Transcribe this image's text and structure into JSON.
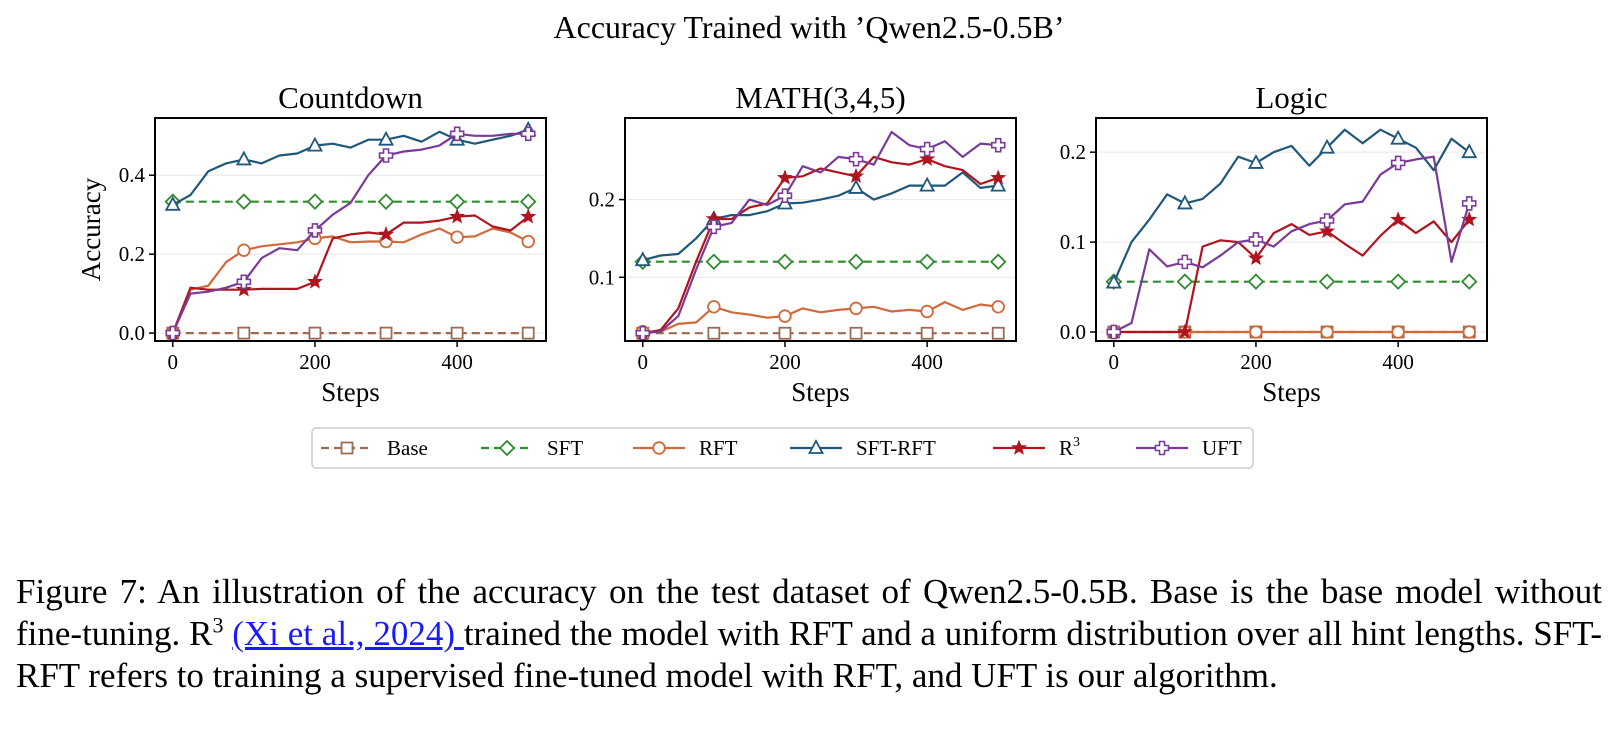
{
  "suptitle": "Accuracy Trained with ’Qwen2.5-0.5B’",
  "colors": {
    "Base": "#9c6b55",
    "SFT": "#2e8b2e",
    "RFT": "#d2693a",
    "SFT-RFT": "#1f5878",
    "R3": "#b0141e",
    "UFT": "#7a3b98"
  },
  "legend": {
    "entries": [
      {
        "key": "Base",
        "label": "Base",
        "marker": "square",
        "dashed": true
      },
      {
        "key": "SFT",
        "label": "SFT",
        "marker": "diamond",
        "dashed": true
      },
      {
        "key": "RFT",
        "label": "RFT",
        "marker": "circle",
        "dashed": false
      },
      {
        "key": "SFT-RFT",
        "label": "SFT-RFT",
        "marker": "triangle",
        "dashed": false
      },
      {
        "key": "R3",
        "label": "R",
        "sup": "3",
        "marker": "star",
        "dashed": false
      },
      {
        "key": "UFT",
        "label": "UFT",
        "marker": "plus",
        "dashed": false
      }
    ]
  },
  "chart_data": [
    {
      "type": "line",
      "title": "Countdown",
      "xlabel": "Steps",
      "ylabel": "Accuracy",
      "xlim": [
        -25,
        525
      ],
      "ylim": [
        -0.02,
        0.545
      ],
      "xticks": [
        0,
        200,
        400
      ],
      "yticks": [
        0.0,
        0.2,
        0.4
      ],
      "ytick_labels": [
        "0.0",
        "0.2",
        "0.4"
      ],
      "grid": true,
      "x": [
        0,
        25,
        50,
        75,
        100,
        125,
        150,
        175,
        200,
        225,
        250,
        275,
        300,
        325,
        350,
        375,
        400,
        425,
        450,
        475,
        500
      ],
      "series": [
        {
          "name": "Base",
          "values": [
            0,
            0,
            0,
            0,
            0,
            0,
            0,
            0,
            0,
            0,
            0,
            0,
            0,
            0,
            0,
            0,
            0,
            0,
            0,
            0,
            0
          ]
        },
        {
          "name": "SFT",
          "values": [
            0.333,
            0.333,
            0.333,
            0.333,
            0.333,
            0.333,
            0.333,
            0.333,
            0.333,
            0.333,
            0.333,
            0.333,
            0.333,
            0.333,
            0.333,
            0.333,
            0.333,
            0.333,
            0.333,
            0.333,
            0.333
          ]
        },
        {
          "name": "RFT",
          "values": [
            0.0,
            0.11,
            0.12,
            0.18,
            0.21,
            0.22,
            0.225,
            0.23,
            0.24,
            0.245,
            0.23,
            0.232,
            0.232,
            0.23,
            0.25,
            0.265,
            0.243,
            0.245,
            0.265,
            0.255,
            0.232
          ]
        },
        {
          "name": "SFT-RFT",
          "values": [
            0.325,
            0.35,
            0.41,
            0.43,
            0.44,
            0.43,
            0.45,
            0.455,
            0.475,
            0.48,
            0.47,
            0.49,
            0.49,
            0.5,
            0.485,
            0.51,
            0.49,
            0.48,
            0.49,
            0.5,
            0.515
          ]
        },
        {
          "name": "R3",
          "values": [
            0.0,
            0.115,
            0.11,
            0.11,
            0.11,
            0.112,
            0.112,
            0.112,
            0.13,
            0.24,
            0.25,
            0.255,
            0.25,
            0.28,
            0.28,
            0.285,
            0.295,
            0.298,
            0.27,
            0.26,
            0.295
          ]
        },
        {
          "name": "UFT",
          "values": [
            0.0,
            0.1,
            0.105,
            0.115,
            0.13,
            0.19,
            0.215,
            0.21,
            0.26,
            0.3,
            0.33,
            0.4,
            0.45,
            0.46,
            0.465,
            0.475,
            0.505,
            0.5,
            0.5,
            0.505,
            0.505
          ]
        }
      ]
    },
    {
      "type": "line",
      "title": "MATH(3,4,5)",
      "xlabel": "Steps",
      "ylabel": "",
      "xlim": [
        -25,
        525
      ],
      "ylim": [
        0.018,
        0.305
      ],
      "xticks": [
        0,
        200,
        400
      ],
      "yticks": [
        0.1,
        0.2
      ],
      "ytick_labels": [
        "0.1",
        "0.2"
      ],
      "grid": true,
      "x": [
        0,
        25,
        50,
        75,
        100,
        125,
        150,
        175,
        200,
        225,
        250,
        275,
        300,
        325,
        350,
        375,
        400,
        425,
        450,
        475,
        500
      ],
      "series": [
        {
          "name": "Base",
          "values": [
            0.028,
            0.028,
            0.028,
            0.028,
            0.028,
            0.028,
            0.028,
            0.028,
            0.028,
            0.028,
            0.028,
            0.028,
            0.028,
            0.028,
            0.028,
            0.028,
            0.028,
            0.028,
            0.028,
            0.028,
            0.028
          ]
        },
        {
          "name": "SFT",
          "values": [
            0.12,
            0.12,
            0.12,
            0.12,
            0.12,
            0.12,
            0.12,
            0.12,
            0.12,
            0.12,
            0.12,
            0.12,
            0.12,
            0.12,
            0.12,
            0.12,
            0.12,
            0.12,
            0.12,
            0.12,
            0.12
          ]
        },
        {
          "name": "RFT",
          "values": [
            0.03,
            0.03,
            0.04,
            0.042,
            0.062,
            0.055,
            0.052,
            0.048,
            0.05,
            0.06,
            0.055,
            0.058,
            0.06,
            0.062,
            0.056,
            0.058,
            0.056,
            0.068,
            0.058,
            0.065,
            0.062
          ]
        },
        {
          "name": "SFT-RFT",
          "values": [
            0.122,
            0.128,
            0.13,
            0.15,
            0.175,
            0.18,
            0.18,
            0.185,
            0.195,
            0.196,
            0.2,
            0.205,
            0.215,
            0.2,
            0.208,
            0.218,
            0.218,
            0.218,
            0.235,
            0.215,
            0.218
          ]
        },
        {
          "name": "R3",
          "values": [
            0.028,
            0.032,
            0.06,
            0.12,
            0.175,
            0.175,
            0.19,
            0.195,
            0.228,
            0.23,
            0.24,
            0.235,
            0.23,
            0.255,
            0.248,
            0.245,
            0.252,
            0.243,
            0.238,
            0.22,
            0.228
          ]
        },
        {
          "name": "UFT",
          "values": [
            0.028,
            0.03,
            0.05,
            0.11,
            0.165,
            0.17,
            0.2,
            0.193,
            0.205,
            0.243,
            0.235,
            0.255,
            0.252,
            0.245,
            0.287,
            0.27,
            0.265,
            0.275,
            0.255,
            0.272,
            0.27
          ]
        }
      ]
    },
    {
      "type": "line",
      "title": "Logic",
      "xlabel": "Steps",
      "ylabel": "",
      "xlim": [
        -25,
        525
      ],
      "ylim": [
        -0.01,
        0.238
      ],
      "xticks": [
        0,
        200,
        400
      ],
      "yticks": [
        0.0,
        0.1,
        0.2
      ],
      "ytick_labels": [
        "0.0",
        "0.1",
        "0.2"
      ],
      "grid": true,
      "x": [
        0,
        25,
        50,
        75,
        100,
        125,
        150,
        175,
        200,
        225,
        250,
        275,
        300,
        325,
        350,
        375,
        400,
        425,
        450,
        475,
        500
      ],
      "series": [
        {
          "name": "Base",
          "values": [
            0,
            0,
            0,
            0,
            0,
            0,
            0,
            0,
            0,
            0,
            0,
            0,
            0,
            0,
            0,
            0,
            0,
            0,
            0,
            0,
            0
          ]
        },
        {
          "name": "SFT",
          "values": [
            0.056,
            0.056,
            0.056,
            0.056,
            0.056,
            0.056,
            0.056,
            0.056,
            0.056,
            0.056,
            0.056,
            0.056,
            0.056,
            0.056,
            0.056,
            0.056,
            0.056,
            0.056,
            0.056,
            0.056,
            0.056
          ]
        },
        {
          "name": "RFT",
          "values": [
            0,
            0,
            0,
            0,
            0,
            0,
            0,
            0,
            0,
            0,
            0,
            0,
            0,
            0,
            0,
            0,
            0,
            0,
            0,
            0,
            0
          ]
        },
        {
          "name": "SFT-RFT",
          "values": [
            0.055,
            0.1,
            0.125,
            0.153,
            0.143,
            0.148,
            0.165,
            0.195,
            0.188,
            0.2,
            0.207,
            0.185,
            0.205,
            0.225,
            0.21,
            0.225,
            0.215,
            0.205,
            0.18,
            0.215,
            0.2
          ]
        },
        {
          "name": "R3",
          "values": [
            0,
            0,
            0,
            0,
            0,
            0.095,
            0.102,
            0.1,
            0.082,
            0.11,
            0.12,
            0.108,
            0.112,
            0.098,
            0.085,
            0.107,
            0.125,
            0.11,
            0.123,
            0.1,
            0.125
          ]
        },
        {
          "name": "UFT",
          "values": [
            0,
            0.01,
            0.092,
            0.073,
            0.078,
            0.072,
            0.085,
            0.1,
            0.103,
            0.095,
            0.112,
            0.12,
            0.124,
            0.142,
            0.145,
            0.175,
            0.188,
            0.192,
            0.195,
            0.078,
            0.143
          ]
        }
      ]
    }
  ],
  "caption": {
    "lead": "Figure 7: An illustration of the accuracy on the test dataset of Qwen2.5-0.5B. Base is the base model without fine-tuning. R",
    "sup": "3",
    "link": "(Xi et al., 2024) ",
    "rest": "trained the model with RFT and a uniform distribution over all hint lengths. SFT-RFT refers to training a supervised fine-tuned model with RFT, and UFT is our algorithm."
  }
}
